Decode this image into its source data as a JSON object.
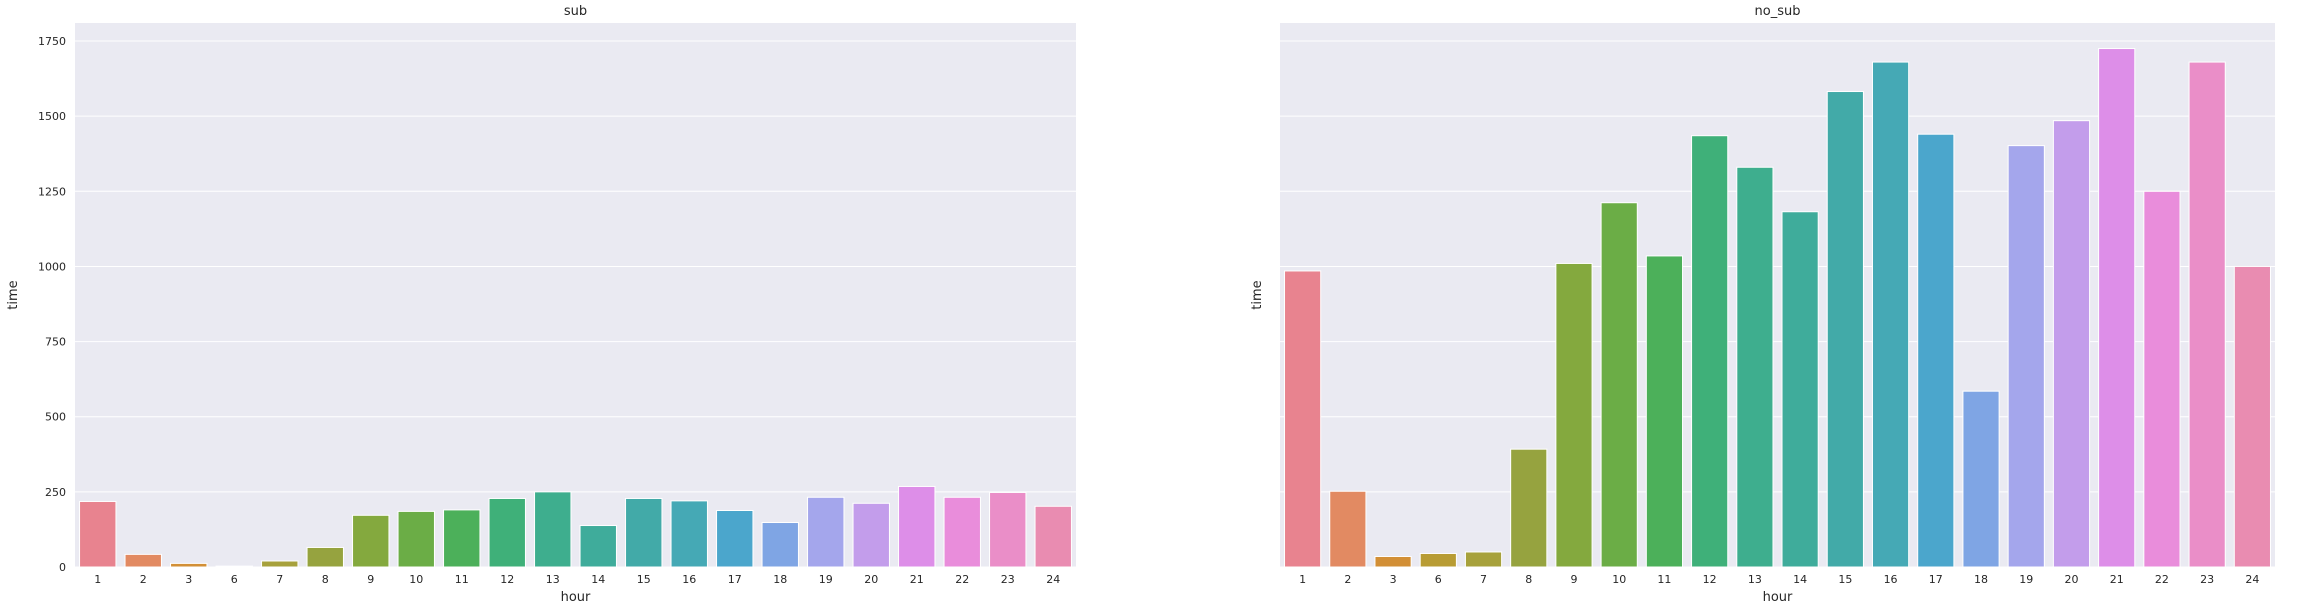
{
  "chart_data": [
    {
      "type": "bar",
      "title": "sub",
      "xlabel": "hour",
      "ylabel": "time",
      "categories": [
        "1",
        "2",
        "3",
        "6",
        "7",
        "8",
        "9",
        "10",
        "11",
        "12",
        "13",
        "14",
        "15",
        "16",
        "17",
        "18",
        "19",
        "20",
        "21",
        "22",
        "23",
        "24"
      ],
      "values": [
        218,
        42,
        12,
        3,
        20,
        65,
        172,
        185,
        190,
        228,
        250,
        138,
        228,
        220,
        188,
        148,
        232,
        212,
        268,
        232,
        248,
        202
      ],
      "ylim": [
        0,
        1810
      ],
      "yticks": [
        0,
        250,
        500,
        750,
        1000,
        1250,
        1500,
        1750
      ],
      "ytick_labels": [
        "0",
        "250",
        "500",
        "750",
        "1000",
        "1250",
        "1500",
        "1750"
      ],
      "grid": true,
      "colors": [
        "#e8838f",
        "#e28a62",
        "#d28f36",
        "#b89c34",
        "#a7a13c",
        "#96a33f",
        "#84a93e",
        "#6bad46",
        "#4cb05a",
        "#3fb079",
        "#3eae8e",
        "#3fac9b",
        "#42aaa8",
        "#45a9b5",
        "#4ba6cc",
        "#7fa5e4",
        "#a4a6ec",
        "#c39deb",
        "#dd8ee8",
        "#e98ddb",
        "#ea8ec8",
        "#e98cb1"
      ]
    },
    {
      "type": "bar",
      "title": "no_sub",
      "xlabel": "hour",
      "ylabel": "time",
      "categories": [
        "1",
        "2",
        "3",
        "6",
        "7",
        "8",
        "9",
        "10",
        "11",
        "12",
        "13",
        "14",
        "15",
        "16",
        "17",
        "18",
        "19",
        "20",
        "21",
        "22",
        "23",
        "24"
      ],
      "values": [
        985,
        252,
        35,
        45,
        50,
        392,
        1010,
        1212,
        1035,
        1435,
        1330,
        1182,
        1582,
        1680,
        1440,
        585,
        1402,
        1485,
        1725,
        1250,
        1680,
        1000
      ],
      "ylim": [
        0,
        1810
      ],
      "grid": true,
      "colors": [
        "#e8838f",
        "#e28a62",
        "#d28f36",
        "#b89c34",
        "#a7a13c",
        "#96a33f",
        "#84a93e",
        "#6bad46",
        "#4cb05a",
        "#3fb079",
        "#3eae8e",
        "#3fac9b",
        "#42aaa8",
        "#45a9b5",
        "#4ba6cc",
        "#7fa5e4",
        "#a4a6ec",
        "#c39deb",
        "#dd8ee8",
        "#e98ddb",
        "#ea8ec8",
        "#e98cb1"
      ]
    }
  ],
  "style": {
    "plot_background": "#eaeaf2",
    "grid_color": "#ffffff",
    "text_color": "#262626"
  }
}
